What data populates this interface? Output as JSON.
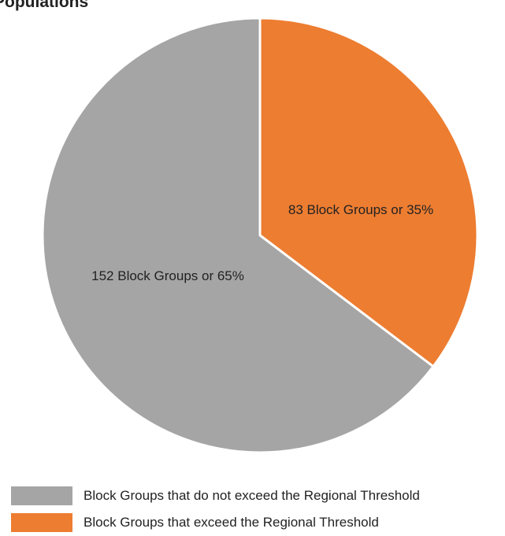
{
  "chart_data": {
    "type": "pie",
    "title": "Populations",
    "slices": [
      {
        "label": "Block Groups that exceed the Regional Threshold",
        "value": 83,
        "percent": 35,
        "data_label": "83 Block Groups or 35%",
        "color": "#ED7D31"
      },
      {
        "label": "Block Groups that do not exceed the Regional Threshold",
        "value": 152,
        "percent": 65,
        "data_label": "152 Block Groups or 65%",
        "color": "#A5A5A5"
      }
    ],
    "legend": {
      "position": "bottom-left",
      "entries": [
        {
          "label": "Block Groups that do not exceed the Regional Threshold",
          "color": "#A5A5A5"
        },
        {
          "label": "Block Groups that exceed the Regional Threshold",
          "color": "#ED7D31"
        }
      ]
    },
    "start_angle": "12 o'clock",
    "direction": "clockwise"
  }
}
